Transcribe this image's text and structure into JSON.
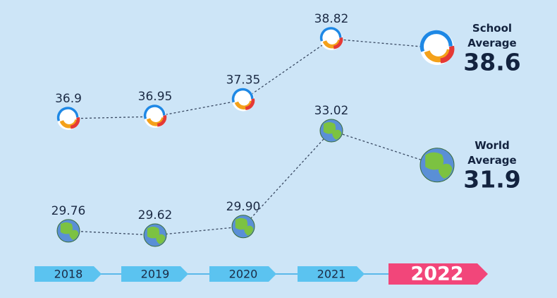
{
  "chart_data": {
    "type": "line",
    "categories": [
      "2018",
      "2019",
      "2020",
      "2021",
      "2022"
    ],
    "series": [
      {
        "name": "School Average",
        "values": [
          36.9,
          36.95,
          37.35,
          38.82,
          38.6
        ]
      },
      {
        "name": "World Average",
        "values": [
          29.76,
          29.62,
          29.9,
          33.02,
          31.9
        ],
        "value_labels": [
          "29.76",
          "29.62",
          "29.90",
          "33.02",
          "31.9"
        ]
      }
    ]
  }
}
